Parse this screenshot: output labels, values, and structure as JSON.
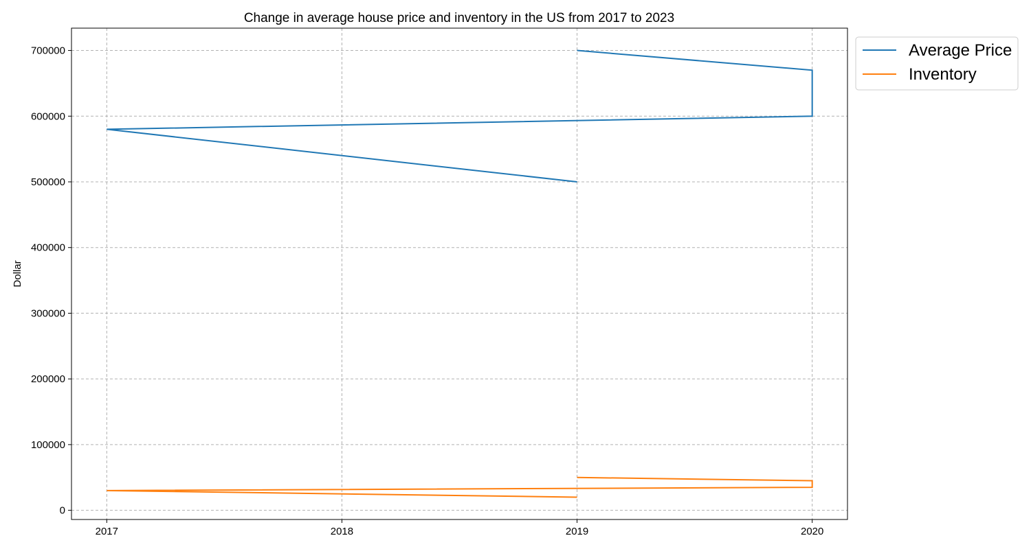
{
  "chart_data": {
    "type": "line",
    "title": "Change in average house price and inventory in the US from 2017 to 2023",
    "xlabel": "",
    "ylabel": "Dollar",
    "xlim": [
      2016.85,
      2020.15
    ],
    "ylim": [
      -14000,
      734000
    ],
    "x_ticks": [
      2017,
      2018,
      2019,
      2020
    ],
    "x_tick_labels": [
      "2017",
      "2018",
      "2019",
      "2020"
    ],
    "y_ticks": [
      0,
      100000,
      200000,
      300000,
      400000,
      500000,
      600000,
      700000
    ],
    "y_tick_labels": [
      "0",
      "100000",
      "200000",
      "300000",
      "400000",
      "500000",
      "600000",
      "700000"
    ],
    "grid": true,
    "legend_position": "outside-top-right",
    "series": [
      {
        "name": "Average Price",
        "color": "#1f77b4",
        "x": [
          2019,
          2017,
          2020,
          2020,
          2019
        ],
        "y": [
          500000,
          580000,
          600000,
          670000,
          700000
        ]
      },
      {
        "name": "Inventory",
        "color": "#ff7f0e",
        "x": [
          2019,
          2017,
          2020,
          2020,
          2019
        ],
        "y": [
          20000,
          30000,
          35000,
          45000,
          50000
        ]
      }
    ]
  }
}
